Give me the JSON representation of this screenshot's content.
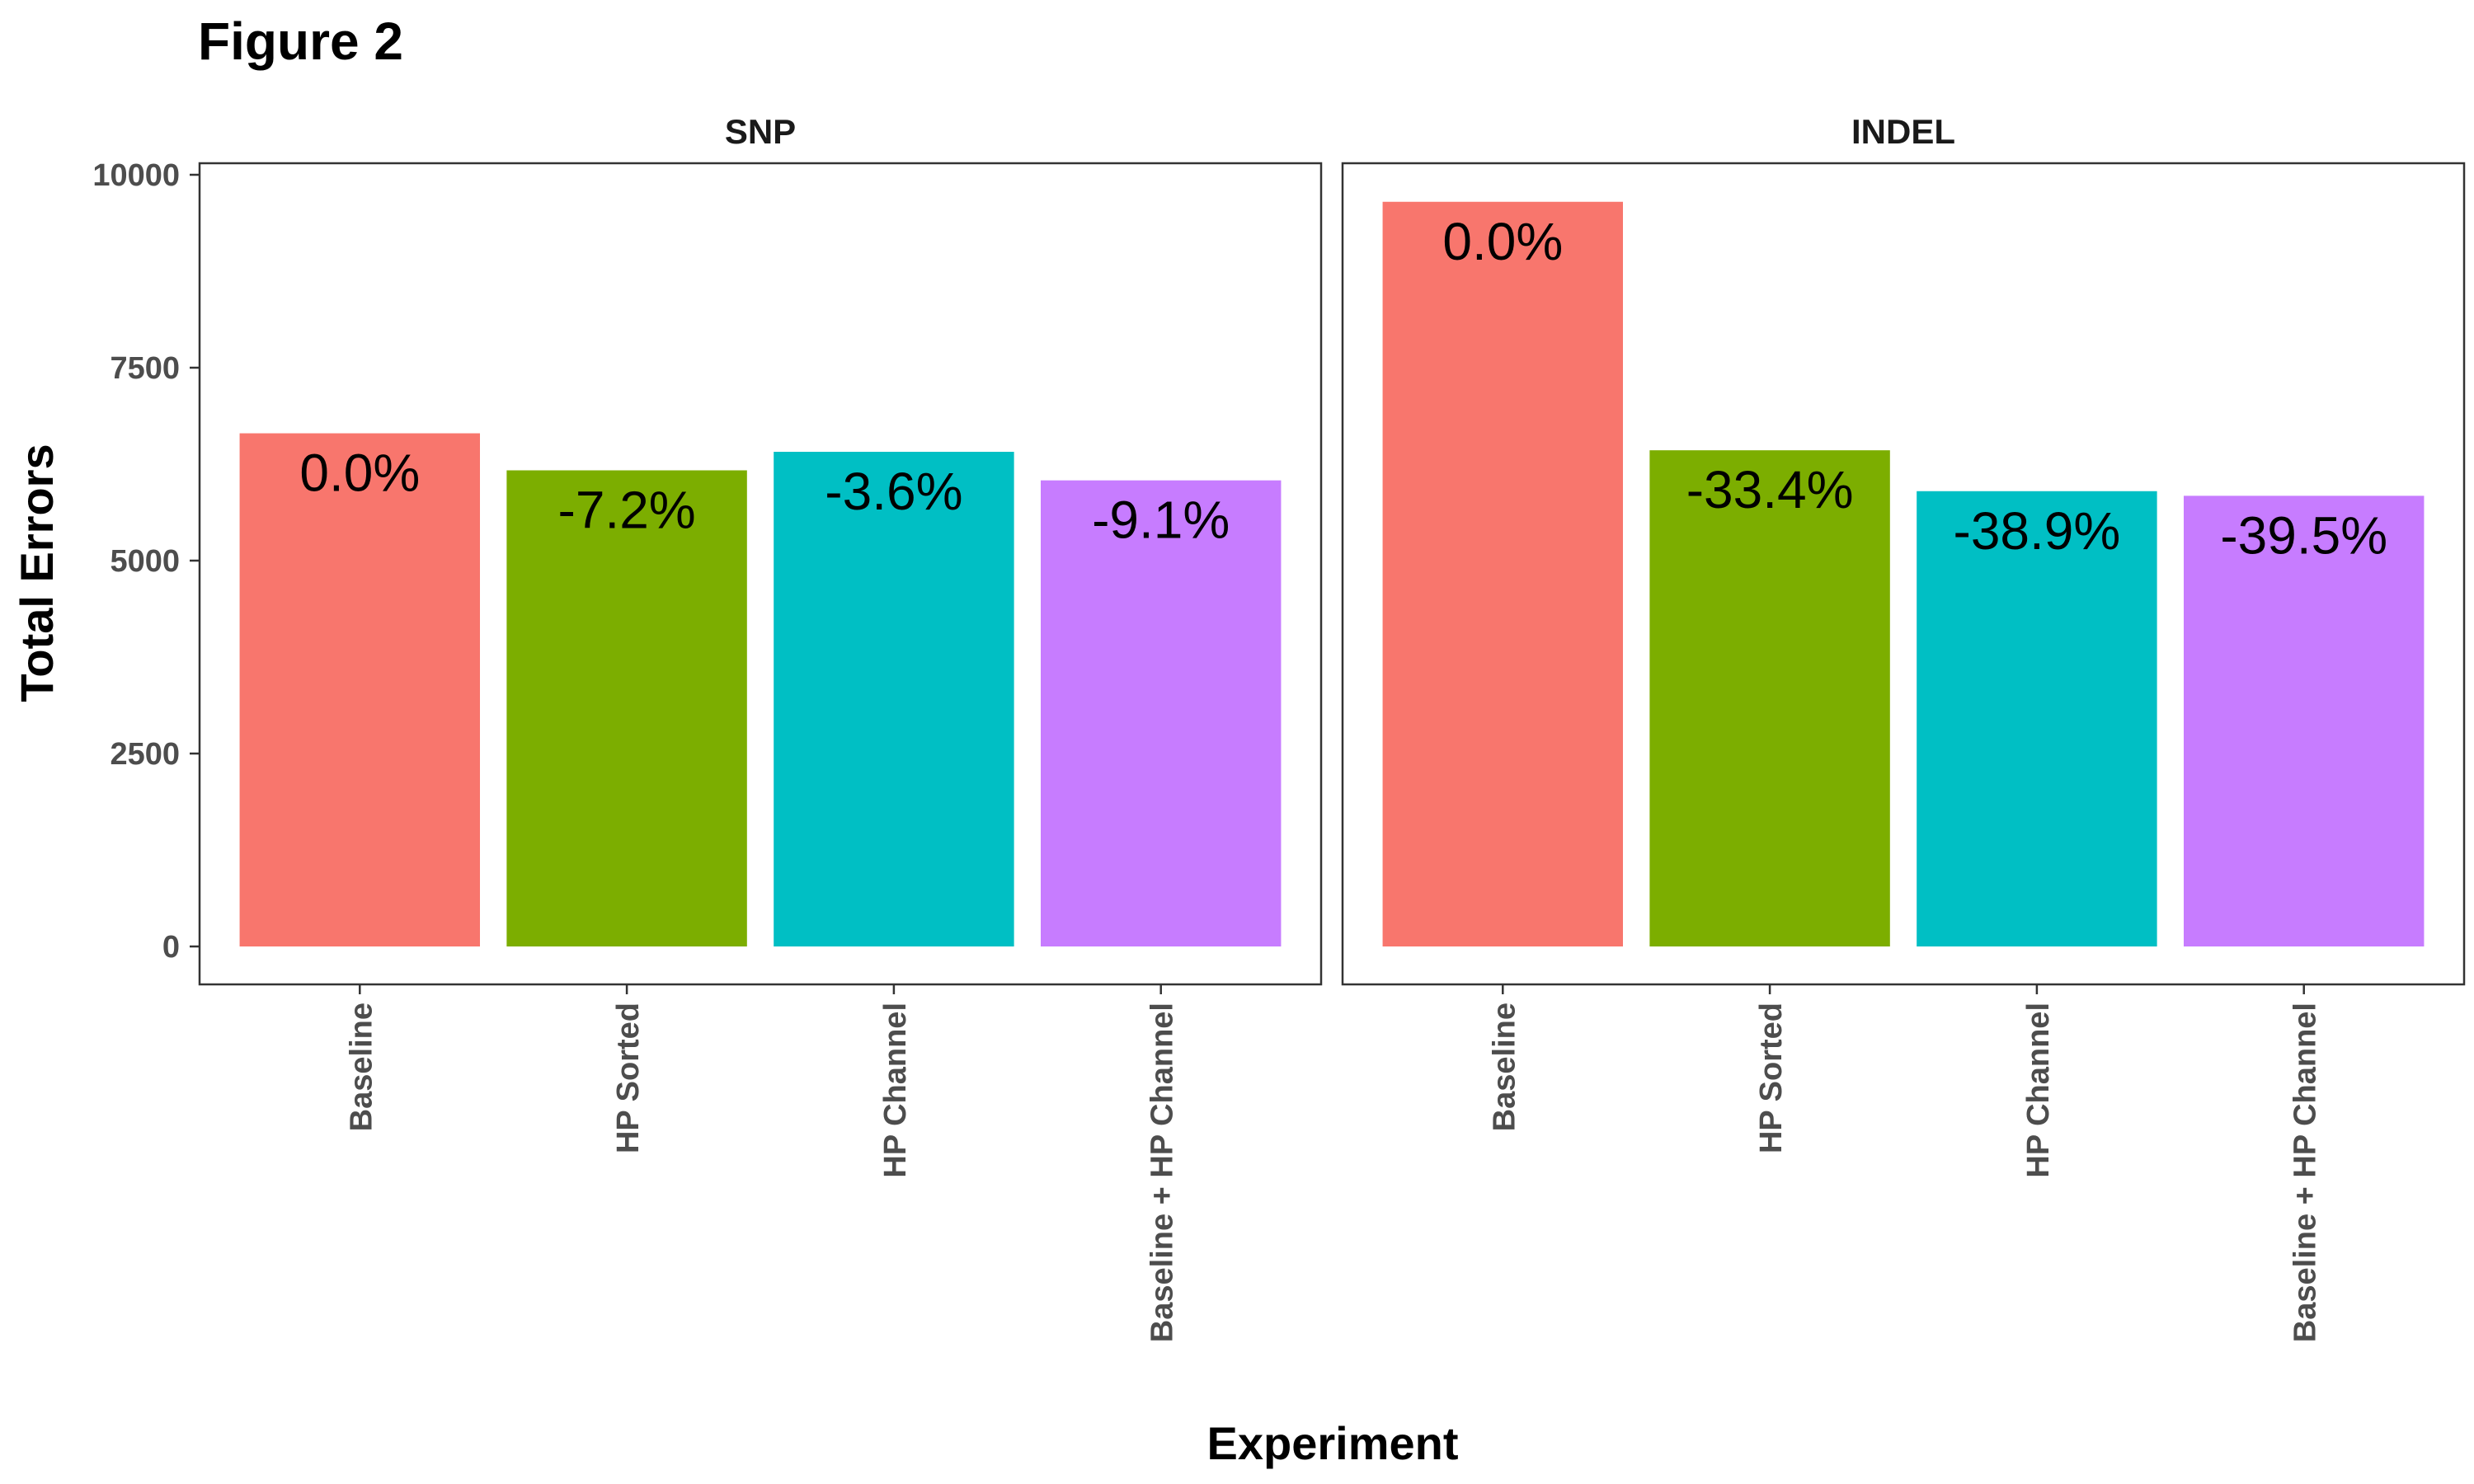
{
  "figure_title": "Figure 2",
  "chart_data": {
    "type": "bar",
    "xlabel": "Experiment",
    "ylabel": "Total Errors",
    "ylim": [
      0,
      10000
    ],
    "yticks": [
      0,
      2500,
      5000,
      7500,
      10000
    ],
    "yticks_labels": [
      "0",
      "2500",
      "5000",
      "7500",
      "10000"
    ],
    "grid": false,
    "legend": "none",
    "categories": [
      "Baseline",
      "HP Sorted",
      "HP Channel",
      "Baseline + HP Channel"
    ],
    "colors": [
      "#F8766D",
      "#7CAE00",
      "#00BFC4",
      "#C77CFF"
    ],
    "panels": [
      {
        "name": "SNP",
        "values": [
          6650,
          6170,
          6410,
          6040
        ],
        "labels": [
          "0.0%",
          "-7.2%",
          "-3.6%",
          "-9.1%"
        ]
      },
      {
        "name": "INDEL",
        "values": [
          9650,
          6430,
          5900,
          5840
        ],
        "labels": [
          "0.0%",
          "-33.4%",
          "-38.9%",
          "-39.5%"
        ]
      }
    ]
  }
}
